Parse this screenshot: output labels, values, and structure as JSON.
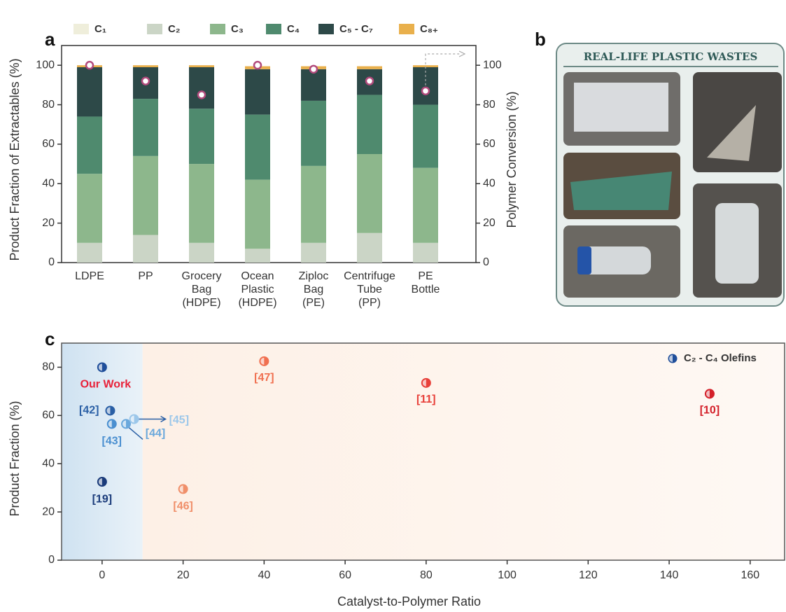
{
  "chart_data": [
    {
      "type": "bar",
      "panel": "a",
      "stacked": true,
      "ylabel": "Product Fraction of Extractables (%)",
      "y2label": "Polymer Conversion (%)",
      "categories": [
        "LDPE",
        "PP",
        "Grocery Bag (HDPE)",
        "Ocean Plastic (HDPE)",
        "Ziploc Bag (PE)",
        "Centrifuge Tube (PP)",
        "PE Bottle"
      ],
      "series": [
        {
          "name": "C₁",
          "color": "#efeedb",
          "values": [
            0,
            0,
            0,
            0,
            0,
            0,
            0
          ]
        },
        {
          "name": "C₂",
          "color": "#cbd5c6",
          "values": [
            10,
            14,
            10,
            7,
            10,
            15,
            10
          ]
        },
        {
          "name": "C₃",
          "color": "#8db78c",
          "values": [
            35,
            40,
            40,
            35,
            39,
            40,
            38
          ]
        },
        {
          "name": "C₄",
          "color": "#4f8a6e",
          "values": [
            29,
            29,
            28,
            33,
            33,
            30,
            32
          ]
        },
        {
          "name": "C₅ - C₇",
          "color": "#2d4948",
          "values": [
            25,
            16,
            21,
            23,
            16,
            13,
            19
          ]
        },
        {
          "name": "C₈₊",
          "color": "#e9b04c",
          "values": [
            1,
            1,
            1,
            1.5,
            1.5,
            1.5,
            1
          ]
        },
        {
          "type": "scatter",
          "axis": "y2",
          "color": "#b24a7c",
          "values": [
            100,
            92,
            85,
            100,
            98,
            92,
            87
          ]
        }
      ],
      "ylim": [
        0,
        110
      ],
      "yticks": [
        0,
        20,
        40,
        60,
        80,
        100
      ],
      "y2lim": [
        0,
        110
      ],
      "y2ticks": [
        0,
        20,
        40,
        60,
        80,
        100
      ]
    },
    {
      "type": "scatter",
      "panel": "c",
      "xlabel": "Catalyst-to-Polymer Ratio",
      "ylabel": "Product Fraction (%)",
      "xlim": [
        -10,
        168.5
      ],
      "xticks": [
        0,
        20,
        40,
        60,
        80,
        100,
        120,
        140,
        160
      ],
      "ylim": [
        0,
        90
      ],
      "yticks": [
        0,
        20,
        40,
        60,
        80
      ],
      "legend": "upper right",
      "regions": [
        {
          "range": [
            -10,
            10
          ],
          "color": "#cfe2f1"
        },
        {
          "range": [
            10,
            168.5
          ],
          "color": "#fdf0e6"
        }
      ],
      "series": [
        {
          "name": "C₂ - C₄ Olefins",
          "legend_color": "#1f4e9a",
          "x": [
            0,
            2,
            2.4,
            5.9,
            7.9,
            0,
            20,
            40,
            80,
            150
          ],
          "values": [
            80,
            62,
            56.5,
            56.5,
            58.5,
            32.5,
            29.5,
            82.5,
            73.5,
            69
          ],
          "labels": [
            "Our Work",
            "[42]",
            "[43]",
            "[44]",
            "[45]",
            "[19]",
            "[46]",
            "[47]",
            "[11]",
            "[10]"
          ],
          "colors": [
            "#1f4e9a",
            "#2a5fa5",
            "#4a8fd0",
            "#6aa8dc",
            "#9cc7ea",
            "#1a3b7a",
            "#f08f6a",
            "#f07050",
            "#e8403a",
            "#d4202a"
          ],
          "label_colors": [
            "#e8223a",
            "#2a5fa5",
            "#4a8fd0",
            "#6aa8dc",
            "#9cc7ea",
            "#1a3b7a",
            "#f08f6a",
            "#f07050",
            "#e8403a",
            "#d4202a"
          ]
        }
      ]
    }
  ],
  "photo_panel": {
    "label": "b",
    "title": "REAL-LIFE PLASTIC WASTES"
  }
}
